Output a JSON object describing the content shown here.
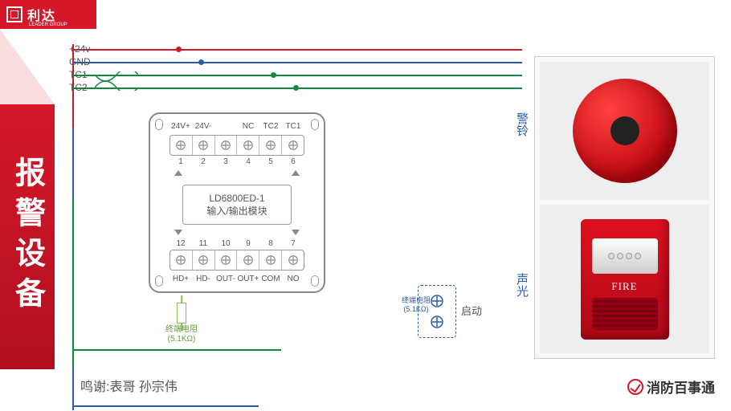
{
  "brand": {
    "name": "利达",
    "sub": "LEADER GROUP"
  },
  "vtitle": "报警设备",
  "credit": "鸣谢:表哥  孙宗伟",
  "footer_brand": "消防百事通",
  "photo_labels": {
    "bell": "警铃",
    "strobe": "声光"
  },
  "strobe_text": "FIRE",
  "bus": {
    "lines": [
      {
        "label": "+24v",
        "color": "#d4182a",
        "y": 0
      },
      {
        "label": "GND",
        "color": "#2a5da8",
        "y": 16
      },
      {
        "label": "TC1",
        "color": "#0a8a3a",
        "y": 32
      },
      {
        "label": "TC2",
        "color": "#0a8a3a",
        "y": 48
      }
    ]
  },
  "module": {
    "model": "LD6800ED-1",
    "subtitle": "输入/输出模块",
    "top_labels": [
      "24V+",
      "24V-",
      "",
      "NC",
      "TC2",
      "TC1"
    ],
    "top_nums": [
      "1",
      "2",
      "3",
      "4",
      "5",
      "6"
    ],
    "bot_nums": [
      "12",
      "11",
      "10",
      "9",
      "8",
      "7"
    ],
    "bot_labels": [
      "HD+",
      "HD-",
      "OUT-",
      "OUT+",
      "COM",
      "NO"
    ]
  },
  "resistors": {
    "r1": "终端电阻\n(5.1KΩ)",
    "r2": "终端电阻\n(5.1KΩ)"
  },
  "start": "启动",
  "colors": {
    "red": "#d4182a",
    "blue": "#2a5da8",
    "green": "#0a8a3a",
    "lgreen": "#8aba5a"
  }
}
